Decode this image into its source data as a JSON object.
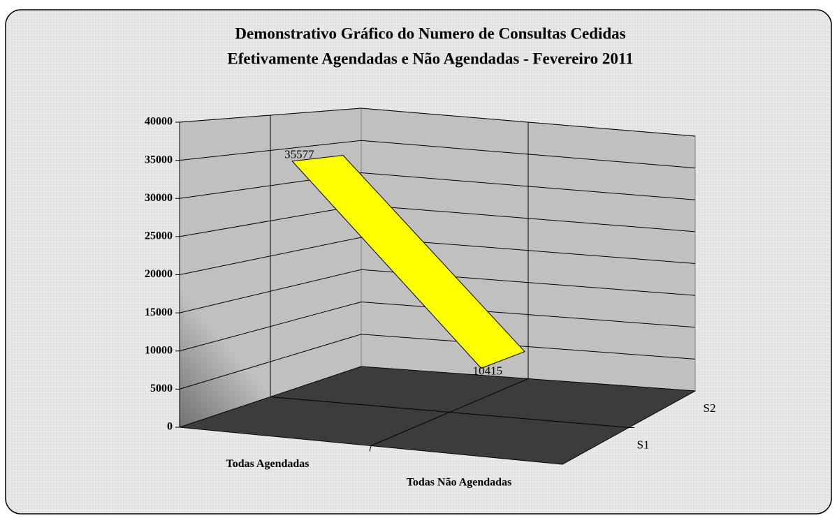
{
  "chart_data": {
    "type": "line3d",
    "title": [
      "Demonstrativo Gráfico do Numero de Consultas Cedidas",
      "Efetivamente Agendadas e Não Agendadas - Fevereiro 2011"
    ],
    "categories": [
      "Todas Agendadas",
      "Todas Não Agendadas"
    ],
    "depth_categories": [
      "S1",
      "S2"
    ],
    "series": [
      {
        "color": "#ffff00",
        "values": [
          35577,
          10415
        ]
      }
    ],
    "ylim": [
      0,
      40000
    ],
    "yticks": [
      0,
      5000,
      10000,
      15000,
      20000,
      25000,
      30000,
      35000,
      40000
    ],
    "grid": true
  }
}
